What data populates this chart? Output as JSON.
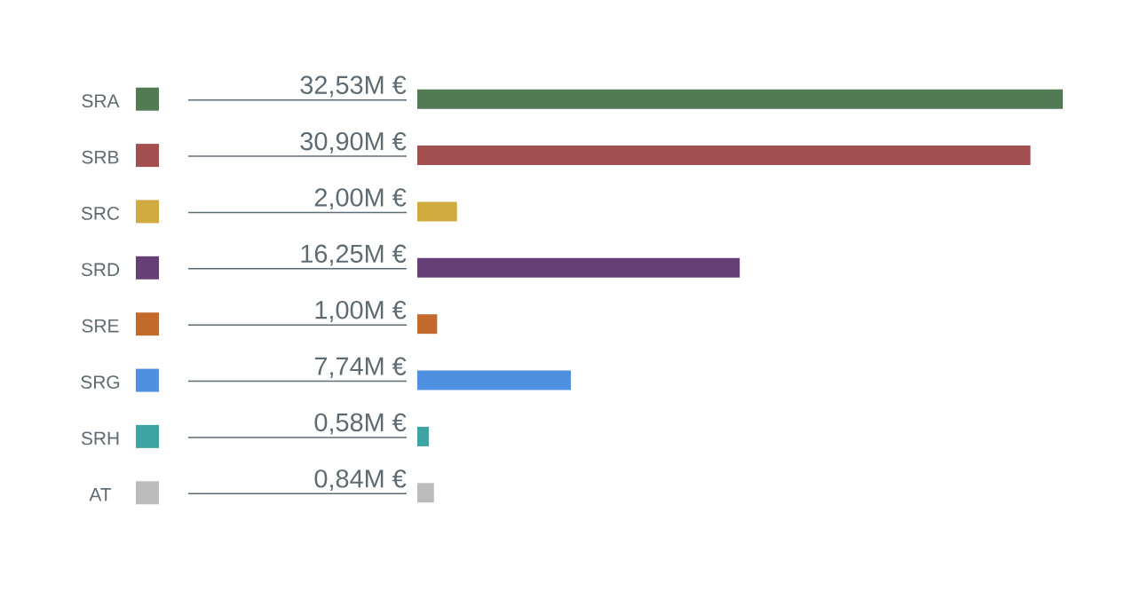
{
  "chart_data": {
    "type": "bar",
    "orientation": "horizontal",
    "categories": [
      "SRA",
      "SRB",
      "SRC",
      "SRD",
      "SRE",
      "SRG",
      "SRH",
      "AT"
    ],
    "values": [
      32.53,
      30.9,
      2.0,
      16.25,
      1.0,
      7.74,
      0.58,
      0.84
    ],
    "colors": [
      "#527a53",
      "#a44f4f",
      "#d1aa40",
      "#653f76",
      "#c26a2b",
      "#5090e0",
      "#40a3a3",
      "#bcbcbc"
    ],
    "value_labels": [
      "32,53M €",
      "30,90M €",
      "2,00M €",
      "16,25M €",
      "1,00M €",
      "7,74M €",
      "0,58M €",
      "0,84M €"
    ]
  }
}
